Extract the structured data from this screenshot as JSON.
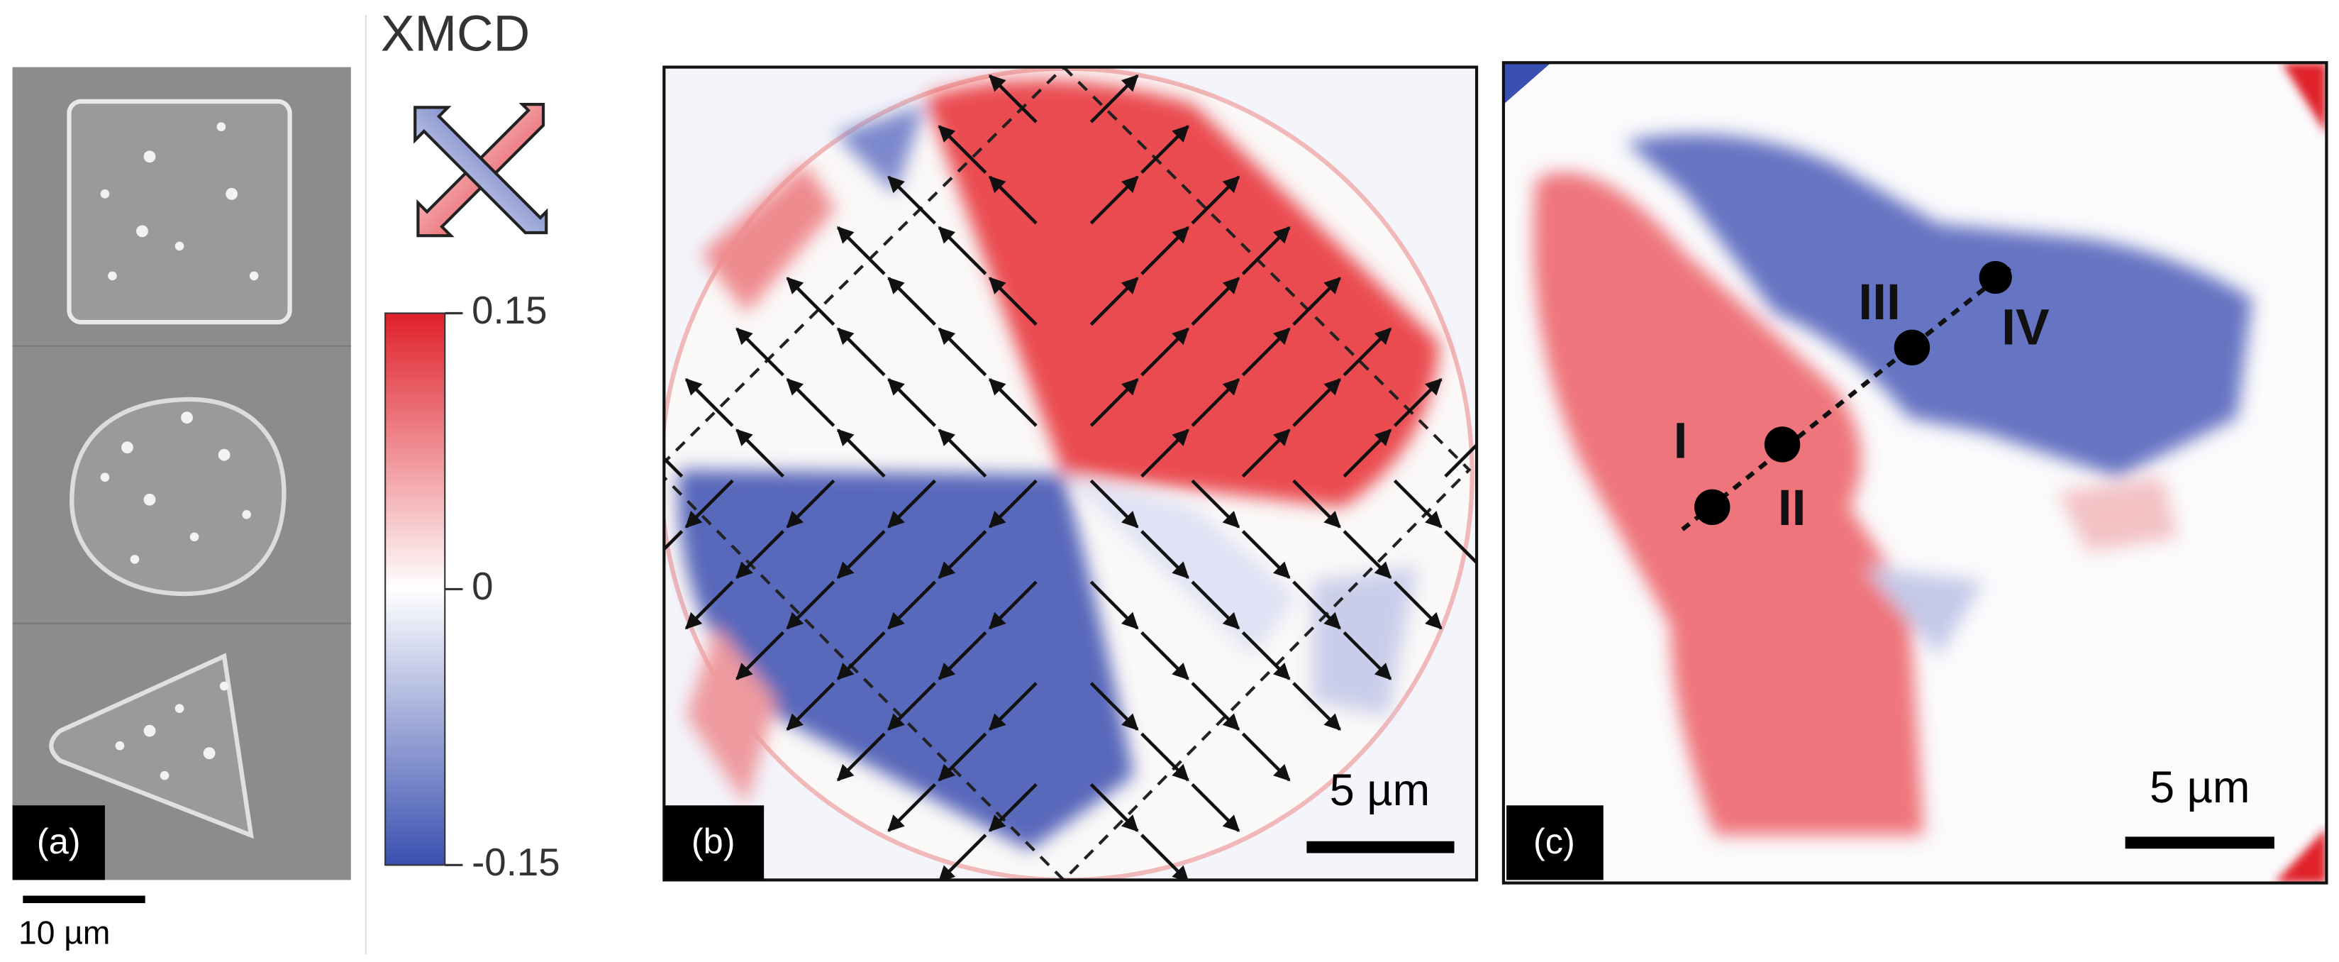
{
  "panels": {
    "a": {
      "label": "(a)",
      "scale_bar": "10 µm"
    },
    "colorbar": {
      "title": "XMCD",
      "lim": [
        -0.15,
        0.15
      ],
      "ticks": [
        0.15,
        0,
        -0.15
      ]
    },
    "b": {
      "label": "(b)",
      "scale_bar": "5 µm"
    },
    "c": {
      "label": "(c)",
      "scale_bar": "5 µm",
      "points": [
        "I",
        "II",
        "III",
        "IV"
      ]
    }
  }
}
